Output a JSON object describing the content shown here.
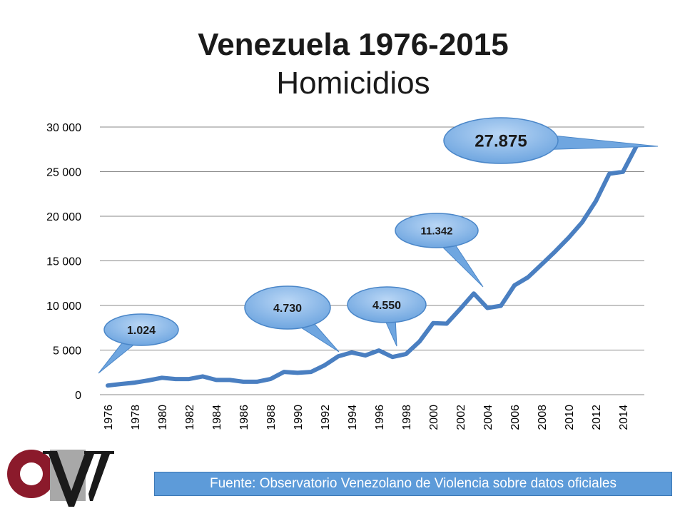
{
  "title": "Venezuela 1976-2015",
  "subtitle": "Homicidios",
  "source": "Fuente: Observatorio Venezolano de Violencia sobre datos oficiales",
  "colors": {
    "line": "#4a7fc1",
    "bubble": "#6fa6e0",
    "bubble_dark": "#4a86c8",
    "grid": "#888888",
    "logo_red": "#8b1a2b",
    "logo_gray": "#a8a8a8",
    "source_bg": "#5d9bd9"
  },
  "chart_data": {
    "type": "line",
    "title": "Venezuela 1976-2015",
    "subtitle": "Homicidios",
    "x": [
      1976,
      1977,
      1978,
      1979,
      1980,
      1981,
      1982,
      1983,
      1984,
      1985,
      1986,
      1987,
      1988,
      1989,
      1990,
      1991,
      1992,
      1993,
      1994,
      1995,
      1996,
      1997,
      1998,
      1999,
      2000,
      2001,
      2002,
      2003,
      2004,
      2005,
      2006,
      2007,
      2008,
      2009,
      2010,
      2011,
      2012,
      2013,
      2014,
      2015
    ],
    "x_tick_labels": [
      "1976",
      "1978",
      "1980",
      "1982",
      "1984",
      "1986",
      "1988",
      "1990",
      "1992",
      "1994",
      "1996",
      "1998",
      "2000",
      "2002",
      "2004",
      "2006",
      "2008",
      "2010",
      "2012",
      "2014"
    ],
    "y_tick_labels": [
      "0",
      "5 000",
      "10 000",
      "15 000",
      "20 000",
      "25 000",
      "30 000"
    ],
    "ylim": [
      0,
      30000
    ],
    "grid": true,
    "series": [
      {
        "values": [
          1024,
          1200,
          1350,
          1600,
          1900,
          1750,
          1750,
          2050,
          1650,
          1650,
          1450,
          1450,
          1750,
          2550,
          2450,
          2550,
          3300,
          4300,
          4730,
          4400,
          4950,
          4225,
          4550,
          5970,
          8020,
          7960,
          9620,
          11342,
          9720,
          9960,
          12260,
          13160,
          14590,
          16050,
          17600,
          19340,
          21690,
          24770,
          24980,
          27875
        ]
      }
    ],
    "annotations": [
      {
        "label": "1.024",
        "x": 1976,
        "y": 1024
      },
      {
        "label": "4.730",
        "x": 1994,
        "y": 4730
      },
      {
        "label": "4.550",
        "x": 1998,
        "y": 4550
      },
      {
        "label": "11.342",
        "x": 2003,
        "y": 11342
      },
      {
        "label": "27.875",
        "x": 2015,
        "y": 27875
      }
    ]
  }
}
